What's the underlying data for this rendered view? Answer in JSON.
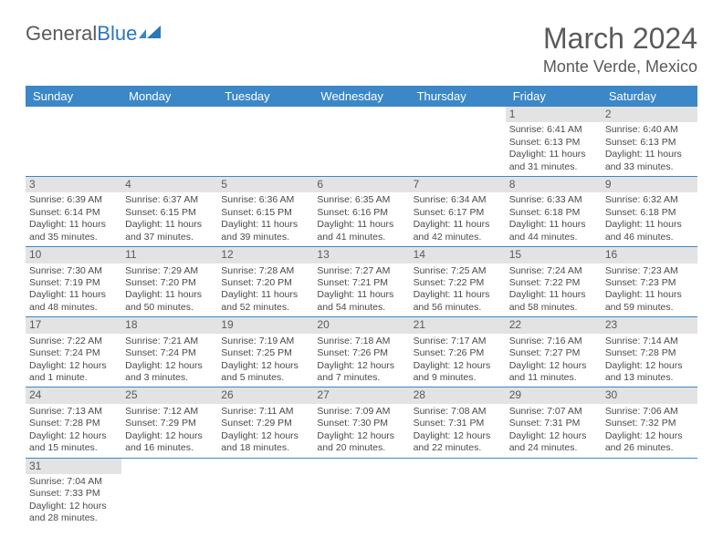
{
  "logo": {
    "part1": "General",
    "part2": "Blue"
  },
  "title": {
    "month": "March 2024",
    "location": "Monte Verde, Mexico"
  },
  "dow": [
    "Sunday",
    "Monday",
    "Tuesday",
    "Wednesday",
    "Thursday",
    "Friday",
    "Saturday"
  ],
  "colors": {
    "header_bg": "#3b87c8",
    "header_text": "#ffffff",
    "daynum_bg": "#e3e3e3",
    "text": "#4a4a4a",
    "logo_gray": "#5a5a5a",
    "logo_blue": "#2c77b8",
    "row_border": "#3b87c8"
  },
  "weeks": [
    [
      {
        "n": "",
        "sr": "",
        "ss": "",
        "d1": "",
        "d2": ""
      },
      {
        "n": "",
        "sr": "",
        "ss": "",
        "d1": "",
        "d2": ""
      },
      {
        "n": "",
        "sr": "",
        "ss": "",
        "d1": "",
        "d2": ""
      },
      {
        "n": "",
        "sr": "",
        "ss": "",
        "d1": "",
        "d2": ""
      },
      {
        "n": "",
        "sr": "",
        "ss": "",
        "d1": "",
        "d2": ""
      },
      {
        "n": "1",
        "sr": "Sunrise: 6:41 AM",
        "ss": "Sunset: 6:13 PM",
        "d1": "Daylight: 11 hours",
        "d2": "and 31 minutes."
      },
      {
        "n": "2",
        "sr": "Sunrise: 6:40 AM",
        "ss": "Sunset: 6:13 PM",
        "d1": "Daylight: 11 hours",
        "d2": "and 33 minutes."
      }
    ],
    [
      {
        "n": "3",
        "sr": "Sunrise: 6:39 AM",
        "ss": "Sunset: 6:14 PM",
        "d1": "Daylight: 11 hours",
        "d2": "and 35 minutes."
      },
      {
        "n": "4",
        "sr": "Sunrise: 6:37 AM",
        "ss": "Sunset: 6:15 PM",
        "d1": "Daylight: 11 hours",
        "d2": "and 37 minutes."
      },
      {
        "n": "5",
        "sr": "Sunrise: 6:36 AM",
        "ss": "Sunset: 6:15 PM",
        "d1": "Daylight: 11 hours",
        "d2": "and 39 minutes."
      },
      {
        "n": "6",
        "sr": "Sunrise: 6:35 AM",
        "ss": "Sunset: 6:16 PM",
        "d1": "Daylight: 11 hours",
        "d2": "and 41 minutes."
      },
      {
        "n": "7",
        "sr": "Sunrise: 6:34 AM",
        "ss": "Sunset: 6:17 PM",
        "d1": "Daylight: 11 hours",
        "d2": "and 42 minutes."
      },
      {
        "n": "8",
        "sr": "Sunrise: 6:33 AM",
        "ss": "Sunset: 6:18 PM",
        "d1": "Daylight: 11 hours",
        "d2": "and 44 minutes."
      },
      {
        "n": "9",
        "sr": "Sunrise: 6:32 AM",
        "ss": "Sunset: 6:18 PM",
        "d1": "Daylight: 11 hours",
        "d2": "and 46 minutes."
      }
    ],
    [
      {
        "n": "10",
        "sr": "Sunrise: 7:30 AM",
        "ss": "Sunset: 7:19 PM",
        "d1": "Daylight: 11 hours",
        "d2": "and 48 minutes."
      },
      {
        "n": "11",
        "sr": "Sunrise: 7:29 AM",
        "ss": "Sunset: 7:20 PM",
        "d1": "Daylight: 11 hours",
        "d2": "and 50 minutes."
      },
      {
        "n": "12",
        "sr": "Sunrise: 7:28 AM",
        "ss": "Sunset: 7:20 PM",
        "d1": "Daylight: 11 hours",
        "d2": "and 52 minutes."
      },
      {
        "n": "13",
        "sr": "Sunrise: 7:27 AM",
        "ss": "Sunset: 7:21 PM",
        "d1": "Daylight: 11 hours",
        "d2": "and 54 minutes."
      },
      {
        "n": "14",
        "sr": "Sunrise: 7:25 AM",
        "ss": "Sunset: 7:22 PM",
        "d1": "Daylight: 11 hours",
        "d2": "and 56 minutes."
      },
      {
        "n": "15",
        "sr": "Sunrise: 7:24 AM",
        "ss": "Sunset: 7:22 PM",
        "d1": "Daylight: 11 hours",
        "d2": "and 58 minutes."
      },
      {
        "n": "16",
        "sr": "Sunrise: 7:23 AM",
        "ss": "Sunset: 7:23 PM",
        "d1": "Daylight: 11 hours",
        "d2": "and 59 minutes."
      }
    ],
    [
      {
        "n": "17",
        "sr": "Sunrise: 7:22 AM",
        "ss": "Sunset: 7:24 PM",
        "d1": "Daylight: 12 hours",
        "d2": "and 1 minute."
      },
      {
        "n": "18",
        "sr": "Sunrise: 7:21 AM",
        "ss": "Sunset: 7:24 PM",
        "d1": "Daylight: 12 hours",
        "d2": "and 3 minutes."
      },
      {
        "n": "19",
        "sr": "Sunrise: 7:19 AM",
        "ss": "Sunset: 7:25 PM",
        "d1": "Daylight: 12 hours",
        "d2": "and 5 minutes."
      },
      {
        "n": "20",
        "sr": "Sunrise: 7:18 AM",
        "ss": "Sunset: 7:26 PM",
        "d1": "Daylight: 12 hours",
        "d2": "and 7 minutes."
      },
      {
        "n": "21",
        "sr": "Sunrise: 7:17 AM",
        "ss": "Sunset: 7:26 PM",
        "d1": "Daylight: 12 hours",
        "d2": "and 9 minutes."
      },
      {
        "n": "22",
        "sr": "Sunrise: 7:16 AM",
        "ss": "Sunset: 7:27 PM",
        "d1": "Daylight: 12 hours",
        "d2": "and 11 minutes."
      },
      {
        "n": "23",
        "sr": "Sunrise: 7:14 AM",
        "ss": "Sunset: 7:28 PM",
        "d1": "Daylight: 12 hours",
        "d2": "and 13 minutes."
      }
    ],
    [
      {
        "n": "24",
        "sr": "Sunrise: 7:13 AM",
        "ss": "Sunset: 7:28 PM",
        "d1": "Daylight: 12 hours",
        "d2": "and 15 minutes."
      },
      {
        "n": "25",
        "sr": "Sunrise: 7:12 AM",
        "ss": "Sunset: 7:29 PM",
        "d1": "Daylight: 12 hours",
        "d2": "and 16 minutes."
      },
      {
        "n": "26",
        "sr": "Sunrise: 7:11 AM",
        "ss": "Sunset: 7:29 PM",
        "d1": "Daylight: 12 hours",
        "d2": "and 18 minutes."
      },
      {
        "n": "27",
        "sr": "Sunrise: 7:09 AM",
        "ss": "Sunset: 7:30 PM",
        "d1": "Daylight: 12 hours",
        "d2": "and 20 minutes."
      },
      {
        "n": "28",
        "sr": "Sunrise: 7:08 AM",
        "ss": "Sunset: 7:31 PM",
        "d1": "Daylight: 12 hours",
        "d2": "and 22 minutes."
      },
      {
        "n": "29",
        "sr": "Sunrise: 7:07 AM",
        "ss": "Sunset: 7:31 PM",
        "d1": "Daylight: 12 hours",
        "d2": "and 24 minutes."
      },
      {
        "n": "30",
        "sr": "Sunrise: 7:06 AM",
        "ss": "Sunset: 7:32 PM",
        "d1": "Daylight: 12 hours",
        "d2": "and 26 minutes."
      }
    ],
    [
      {
        "n": "31",
        "sr": "Sunrise: 7:04 AM",
        "ss": "Sunset: 7:33 PM",
        "d1": "Daylight: 12 hours",
        "d2": "and 28 minutes."
      },
      {
        "n": "",
        "sr": "",
        "ss": "",
        "d1": "",
        "d2": ""
      },
      {
        "n": "",
        "sr": "",
        "ss": "",
        "d1": "",
        "d2": ""
      },
      {
        "n": "",
        "sr": "",
        "ss": "",
        "d1": "",
        "d2": ""
      },
      {
        "n": "",
        "sr": "",
        "ss": "",
        "d1": "",
        "d2": ""
      },
      {
        "n": "",
        "sr": "",
        "ss": "",
        "d1": "",
        "d2": ""
      },
      {
        "n": "",
        "sr": "",
        "ss": "",
        "d1": "",
        "d2": ""
      }
    ]
  ]
}
